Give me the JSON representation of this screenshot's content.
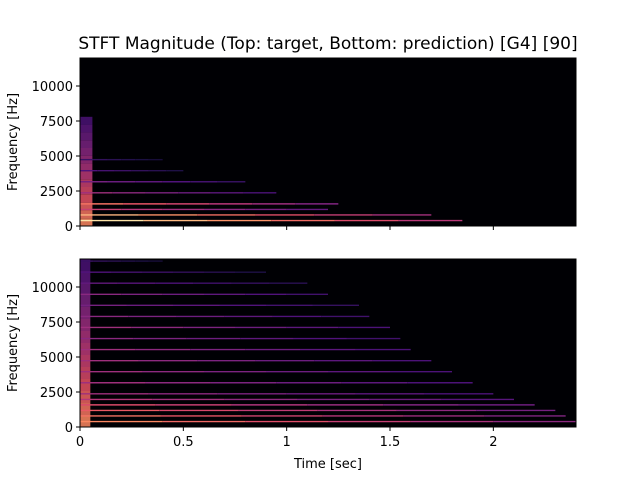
{
  "figure": {
    "title": "STFT Magnitude (Top: target, Bottom: prediction) [G4] [90]"
  },
  "colors": {
    "background": "#000004",
    "colormap": "magma",
    "axes_frame": "#000000"
  },
  "chart_data": [
    {
      "type": "heatmap",
      "name_printed": "",
      "panel": "top",
      "title": "STFT Magnitude (Top: target, Bottom: prediction) [G4] [90]",
      "xlabel": "",
      "ylabel": "Frequency [Hz]",
      "xlim": [
        0,
        2.4
      ],
      "ylim": [
        0,
        12000
      ],
      "x_ticks": [
        0,
        0.5,
        1,
        1.5,
        2
      ],
      "x_tick_labels_shown": false,
      "y_ticks": [
        0,
        2500,
        5000,
        7500,
        10000
      ],
      "y_tick_labels": [
        "0",
        "2500",
        "5000",
        "7500",
        "10000"
      ],
      "harmonics": [
        {
          "freq": 390,
          "end_time": 1.85,
          "intensity": 0.95
        },
        {
          "freq": 790,
          "end_time": 1.7,
          "intensity": 0.85
        },
        {
          "freq": 1580,
          "end_time": 1.25,
          "intensity": 0.7
        },
        {
          "freq": 1180,
          "end_time": 1.2,
          "intensity": 0.55
        },
        {
          "freq": 2370,
          "end_time": 0.95,
          "intensity": 0.45
        },
        {
          "freq": 3160,
          "end_time": 0.8,
          "intensity": 0.35
        },
        {
          "freq": 3950,
          "end_time": 0.5,
          "intensity": 0.25
        },
        {
          "freq": 4740,
          "end_time": 0.4,
          "intensity": 0.2
        }
      ],
      "onset": {
        "time_end": 0.06,
        "freq_max": 7800
      }
    },
    {
      "type": "heatmap",
      "panel": "bottom",
      "xlabel": "Time [sec]",
      "ylabel": "Frequency [Hz]",
      "xlim": [
        0,
        2.4
      ],
      "ylim": [
        0,
        12000
      ],
      "x_ticks": [
        0,
        0.5,
        1,
        1.5,
        2
      ],
      "x_tick_labels": [
        "0",
        "0.5",
        "1",
        "1.5",
        "2"
      ],
      "y_ticks": [
        0,
        2500,
        5000,
        7500,
        10000
      ],
      "y_tick_labels": [
        "0",
        "2500",
        "5000",
        "7500",
        "10000"
      ],
      "harmonics": [
        {
          "freq": 390,
          "end_time": 2.4,
          "intensity": 0.75
        },
        {
          "freq": 790,
          "end_time": 2.35,
          "intensity": 0.7
        },
        {
          "freq": 1180,
          "end_time": 2.3,
          "intensity": 0.65
        },
        {
          "freq": 1580,
          "end_time": 2.2,
          "intensity": 0.6
        },
        {
          "freq": 1970,
          "end_time": 2.1,
          "intensity": 0.5
        },
        {
          "freq": 2370,
          "end_time": 2.0,
          "intensity": 0.45
        },
        {
          "freq": 3160,
          "end_time": 1.9,
          "intensity": 0.45
        },
        {
          "freq": 3950,
          "end_time": 1.8,
          "intensity": 0.45
        },
        {
          "freq": 4740,
          "end_time": 1.7,
          "intensity": 0.45
        },
        {
          "freq": 5530,
          "end_time": 1.6,
          "intensity": 0.45
        },
        {
          "freq": 6320,
          "end_time": 1.55,
          "intensity": 0.4
        },
        {
          "freq": 7110,
          "end_time": 1.5,
          "intensity": 0.45
        },
        {
          "freq": 7900,
          "end_time": 1.4,
          "intensity": 0.4
        },
        {
          "freq": 8690,
          "end_time": 1.35,
          "intensity": 0.35
        },
        {
          "freq": 9480,
          "end_time": 1.2,
          "intensity": 0.4
        },
        {
          "freq": 10270,
          "end_time": 1.1,
          "intensity": 0.3
        },
        {
          "freq": 11060,
          "end_time": 0.9,
          "intensity": 0.25
        },
        {
          "freq": 11850,
          "end_time": 0.4,
          "intensity": 0.2
        }
      ],
      "onset": {
        "time_end": 0.05,
        "freq_max": 12000
      }
    }
  ]
}
